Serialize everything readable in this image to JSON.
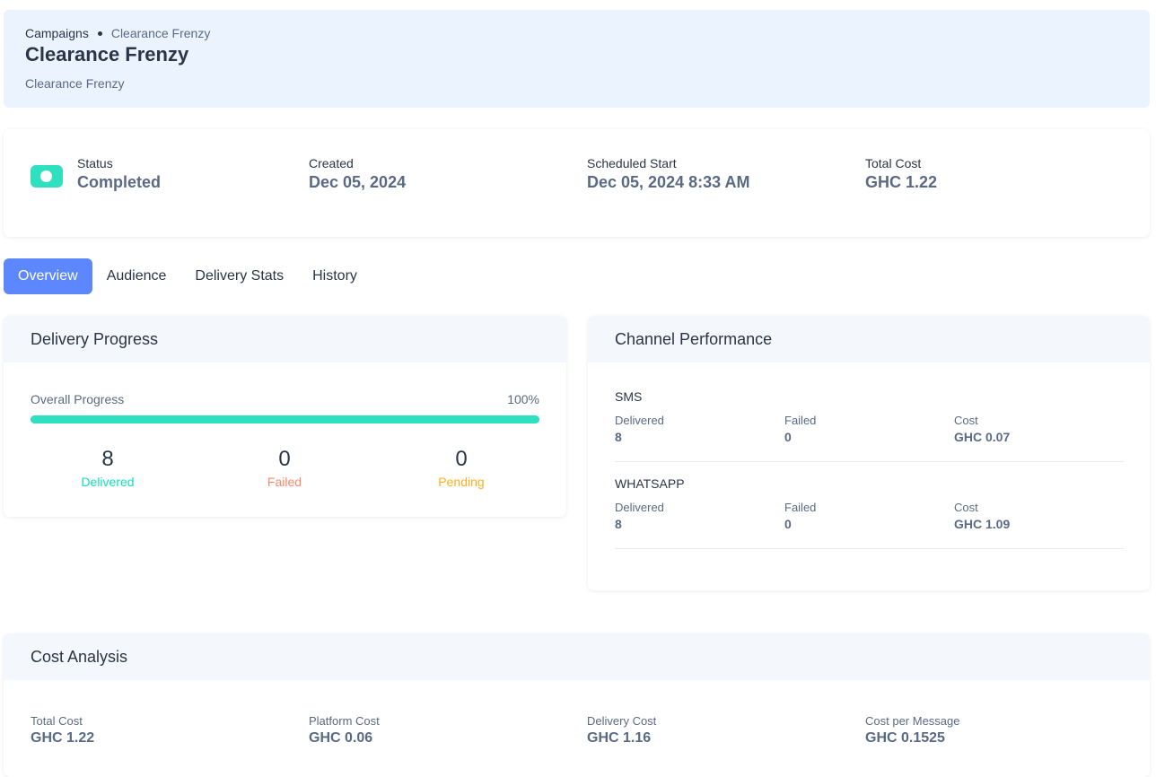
{
  "header": {
    "breadcrumb_root": "Campaigns",
    "breadcrumb_current": "Clearance Frenzy",
    "title": "Clearance Frenzy",
    "subtitle": "Clearance Frenzy"
  },
  "summary": {
    "status_label": "Status",
    "status_value": "Completed",
    "created_label": "Created",
    "created_value": "Dec 05, 2024",
    "scheduled_label": "Scheduled Start",
    "scheduled_value": "Dec 05, 2024 8:33 AM",
    "total_cost_label": "Total Cost",
    "total_cost_value": "GHC 1.22"
  },
  "tabs": [
    "Overview",
    "Audience",
    "Delivery Stats",
    "History"
  ],
  "active_tab": "Overview",
  "delivery_progress": {
    "title": "Delivery Progress",
    "overall_label": "Overall Progress",
    "overall_pct": "100%",
    "progress_fraction": 1.0,
    "delivered_count": "8",
    "delivered_label": "Delivered",
    "failed_count": "0",
    "failed_label": "Failed",
    "pending_count": "0",
    "pending_label": "Pending"
  },
  "channel_performance": {
    "title": "Channel Performance",
    "channels": [
      {
        "name": "SMS",
        "delivered_label": "Delivered",
        "delivered": "8",
        "failed_label": "Failed",
        "failed": "0",
        "cost_label": "Cost",
        "cost": "GHC 0.07"
      },
      {
        "name": "WHATSAPP",
        "delivered_label": "Delivered",
        "delivered": "8",
        "failed_label": "Failed",
        "failed": "0",
        "cost_label": "Cost",
        "cost": "GHC 1.09"
      }
    ]
  },
  "cost_analysis": {
    "title": "Cost Analysis",
    "total_cost_label": "Total Cost",
    "total_cost": "GHC 1.22",
    "platform_cost_label": "Platform Cost",
    "platform_cost": "GHC 0.06",
    "delivery_cost_label": "Delivery Cost",
    "delivery_cost": "GHC 1.16",
    "cost_per_message_label": "Cost per Message",
    "cost_per_message": "GHC 0.1525"
  },
  "colors": {
    "accent": "#5d87ff",
    "success": "#13deb9",
    "error": "#fa896b",
    "warning": "#ffae1f",
    "progress": "#2ee0bf"
  },
  "icons": {
    "status": "toggle-on-icon"
  }
}
